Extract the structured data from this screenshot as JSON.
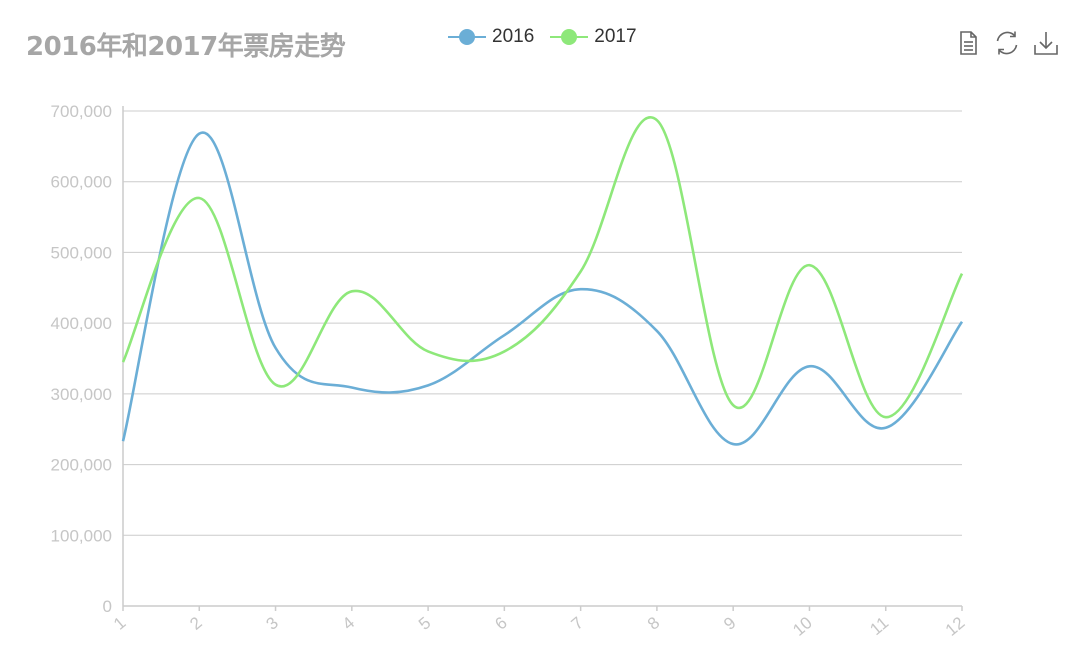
{
  "chart_data": {
    "type": "line",
    "smooth": true,
    "title": "2016年和2017年票房走势",
    "categories": [
      "1",
      "2",
      "3",
      "4",
      "5",
      "6",
      "7",
      "8",
      "9",
      "10",
      "11",
      "12"
    ],
    "series": [
      {
        "name": "2016",
        "color": "#6baed6",
        "values": [
          233000,
          668000,
          365000,
          309000,
          312000,
          383000,
          448000,
          389000,
          229000,
          339000,
          252000,
          402000
        ]
      },
      {
        "name": "2017",
        "color": "#8ee87a",
        "values": [
          345000,
          577000,
          313000,
          445000,
          360000,
          360000,
          473000,
          687000,
          284000,
          482000,
          267000,
          470000
        ]
      }
    ],
    "ylim": [
      0,
      700000
    ],
    "yticks": [
      0,
      100000,
      200000,
      300000,
      400000,
      500000,
      600000,
      700000
    ],
    "ytick_labels": [
      "0",
      "100,000",
      "200,000",
      "300,000",
      "400,000",
      "500,000",
      "600,000",
      "700,000"
    ],
    "grid": true,
    "legend_position": "top-center"
  },
  "toolbox": {
    "icons": [
      "data-view-icon",
      "restore-icon",
      "save-image-icon"
    ]
  }
}
